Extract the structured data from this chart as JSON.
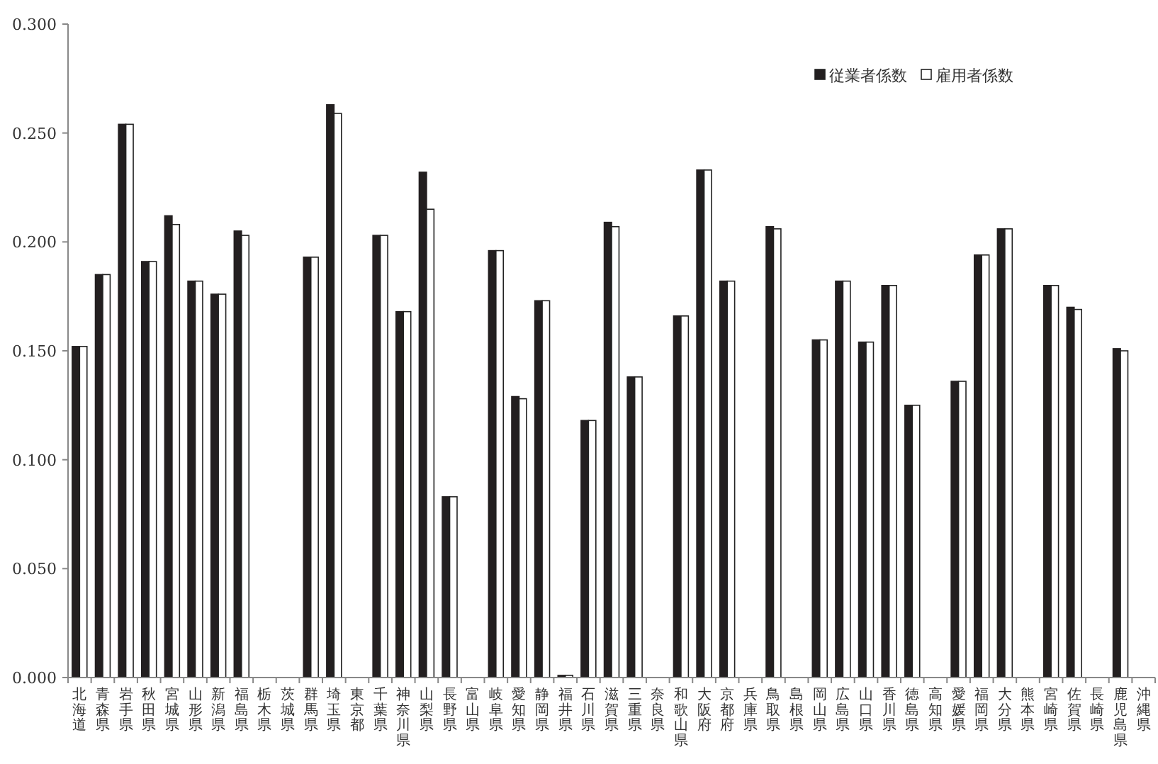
{
  "chart_data": {
    "type": "bar",
    "categories": [
      "北海道",
      "青森県",
      "岩手県",
      "秋田県",
      "宮城県",
      "山形県",
      "新潟県",
      "福島県",
      "栃木県",
      "茨城県",
      "群馬県",
      "埼玉県",
      "東京都",
      "千葉県",
      "神奈川県",
      "山梨県",
      "長野県",
      "富山県",
      "岐阜県",
      "愛知県",
      "静岡県",
      "福井県",
      "石川県",
      "滋賀県",
      "三重県",
      "奈良県",
      "和歌山県",
      "大阪府",
      "京都府",
      "兵庫県",
      "鳥取県",
      "島根県",
      "岡山県",
      "広島県",
      "山口県",
      "香川県",
      "徳島県",
      "高知県",
      "愛媛県",
      "福岡県",
      "大分県",
      "熊本県",
      "宮崎県",
      "佐賀県",
      "長崎県",
      "鹿児島県",
      "沖縄県"
    ],
    "series": [
      {
        "name": "従業者係数",
        "color": "#231f20",
        "values": [
          0.152,
          0.185,
          0.254,
          0.191,
          0.212,
          0.182,
          0.176,
          0.205,
          null,
          null,
          0.193,
          0.263,
          null,
          0.203,
          0.168,
          0.232,
          0.083,
          null,
          0.196,
          0.129,
          0.173,
          0.001,
          0.118,
          0.209,
          0.138,
          null,
          0.166,
          0.233,
          0.182,
          null,
          0.207,
          null,
          0.155,
          0.182,
          0.154,
          0.18,
          0.125,
          null,
          0.136,
          0.194,
          0.206,
          null,
          0.18,
          0.17,
          null,
          0.151,
          null
        ]
      },
      {
        "name": "雇用者係数",
        "color": "#ffffff",
        "values": [
          0.152,
          0.185,
          0.254,
          0.191,
          0.208,
          0.182,
          0.176,
          0.203,
          null,
          null,
          0.193,
          0.259,
          null,
          0.203,
          0.168,
          0.215,
          0.083,
          null,
          0.196,
          0.128,
          0.173,
          0.001,
          0.118,
          0.207,
          0.138,
          null,
          0.166,
          0.233,
          0.182,
          null,
          0.206,
          null,
          0.155,
          0.182,
          0.154,
          0.18,
          0.125,
          null,
          0.136,
          0.194,
          0.206,
          null,
          0.18,
          0.169,
          null,
          0.15,
          null
        ]
      }
    ],
    "ylim": [
      0,
      0.3
    ],
    "yticks": [
      {
        "value": 0,
        "label": "0.000"
      },
      {
        "value": 0.05,
        "label": "0.050"
      },
      {
        "value": 0.1,
        "label": "0.100"
      },
      {
        "value": 0.15,
        "label": "0.150"
      },
      {
        "value": 0.2,
        "label": "0.200"
      },
      {
        "value": 0.25,
        "label": "0.250"
      },
      {
        "value": 0.3,
        "label": "0.300"
      }
    ],
    "legend": "top right",
    "grid": false
  }
}
